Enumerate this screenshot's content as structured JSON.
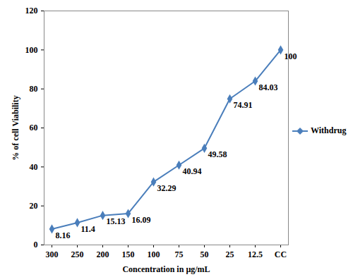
{
  "chart_data": {
    "type": "line",
    "x_label": "Concentration in µg/mL",
    "y_label": "% of cell Viability",
    "categories": [
      "300",
      "250",
      "200",
      "150",
      "100",
      "75",
      "50",
      "25",
      "12.5",
      "CC"
    ],
    "series": [
      {
        "name": "Withdrug",
        "color": "#4a7ebb",
        "marker": "diamond",
        "values": [
          8.16,
          11.4,
          15.13,
          16.09,
          32.29,
          40.94,
          49.58,
          74.91,
          84.03,
          100
        ]
      }
    ],
    "ylim": [
      0,
      120
    ],
    "yticks": [
      0,
      20,
      40,
      60,
      80,
      100,
      120
    ],
    "grid": false,
    "legend": "right",
    "data_labels": true
  }
}
